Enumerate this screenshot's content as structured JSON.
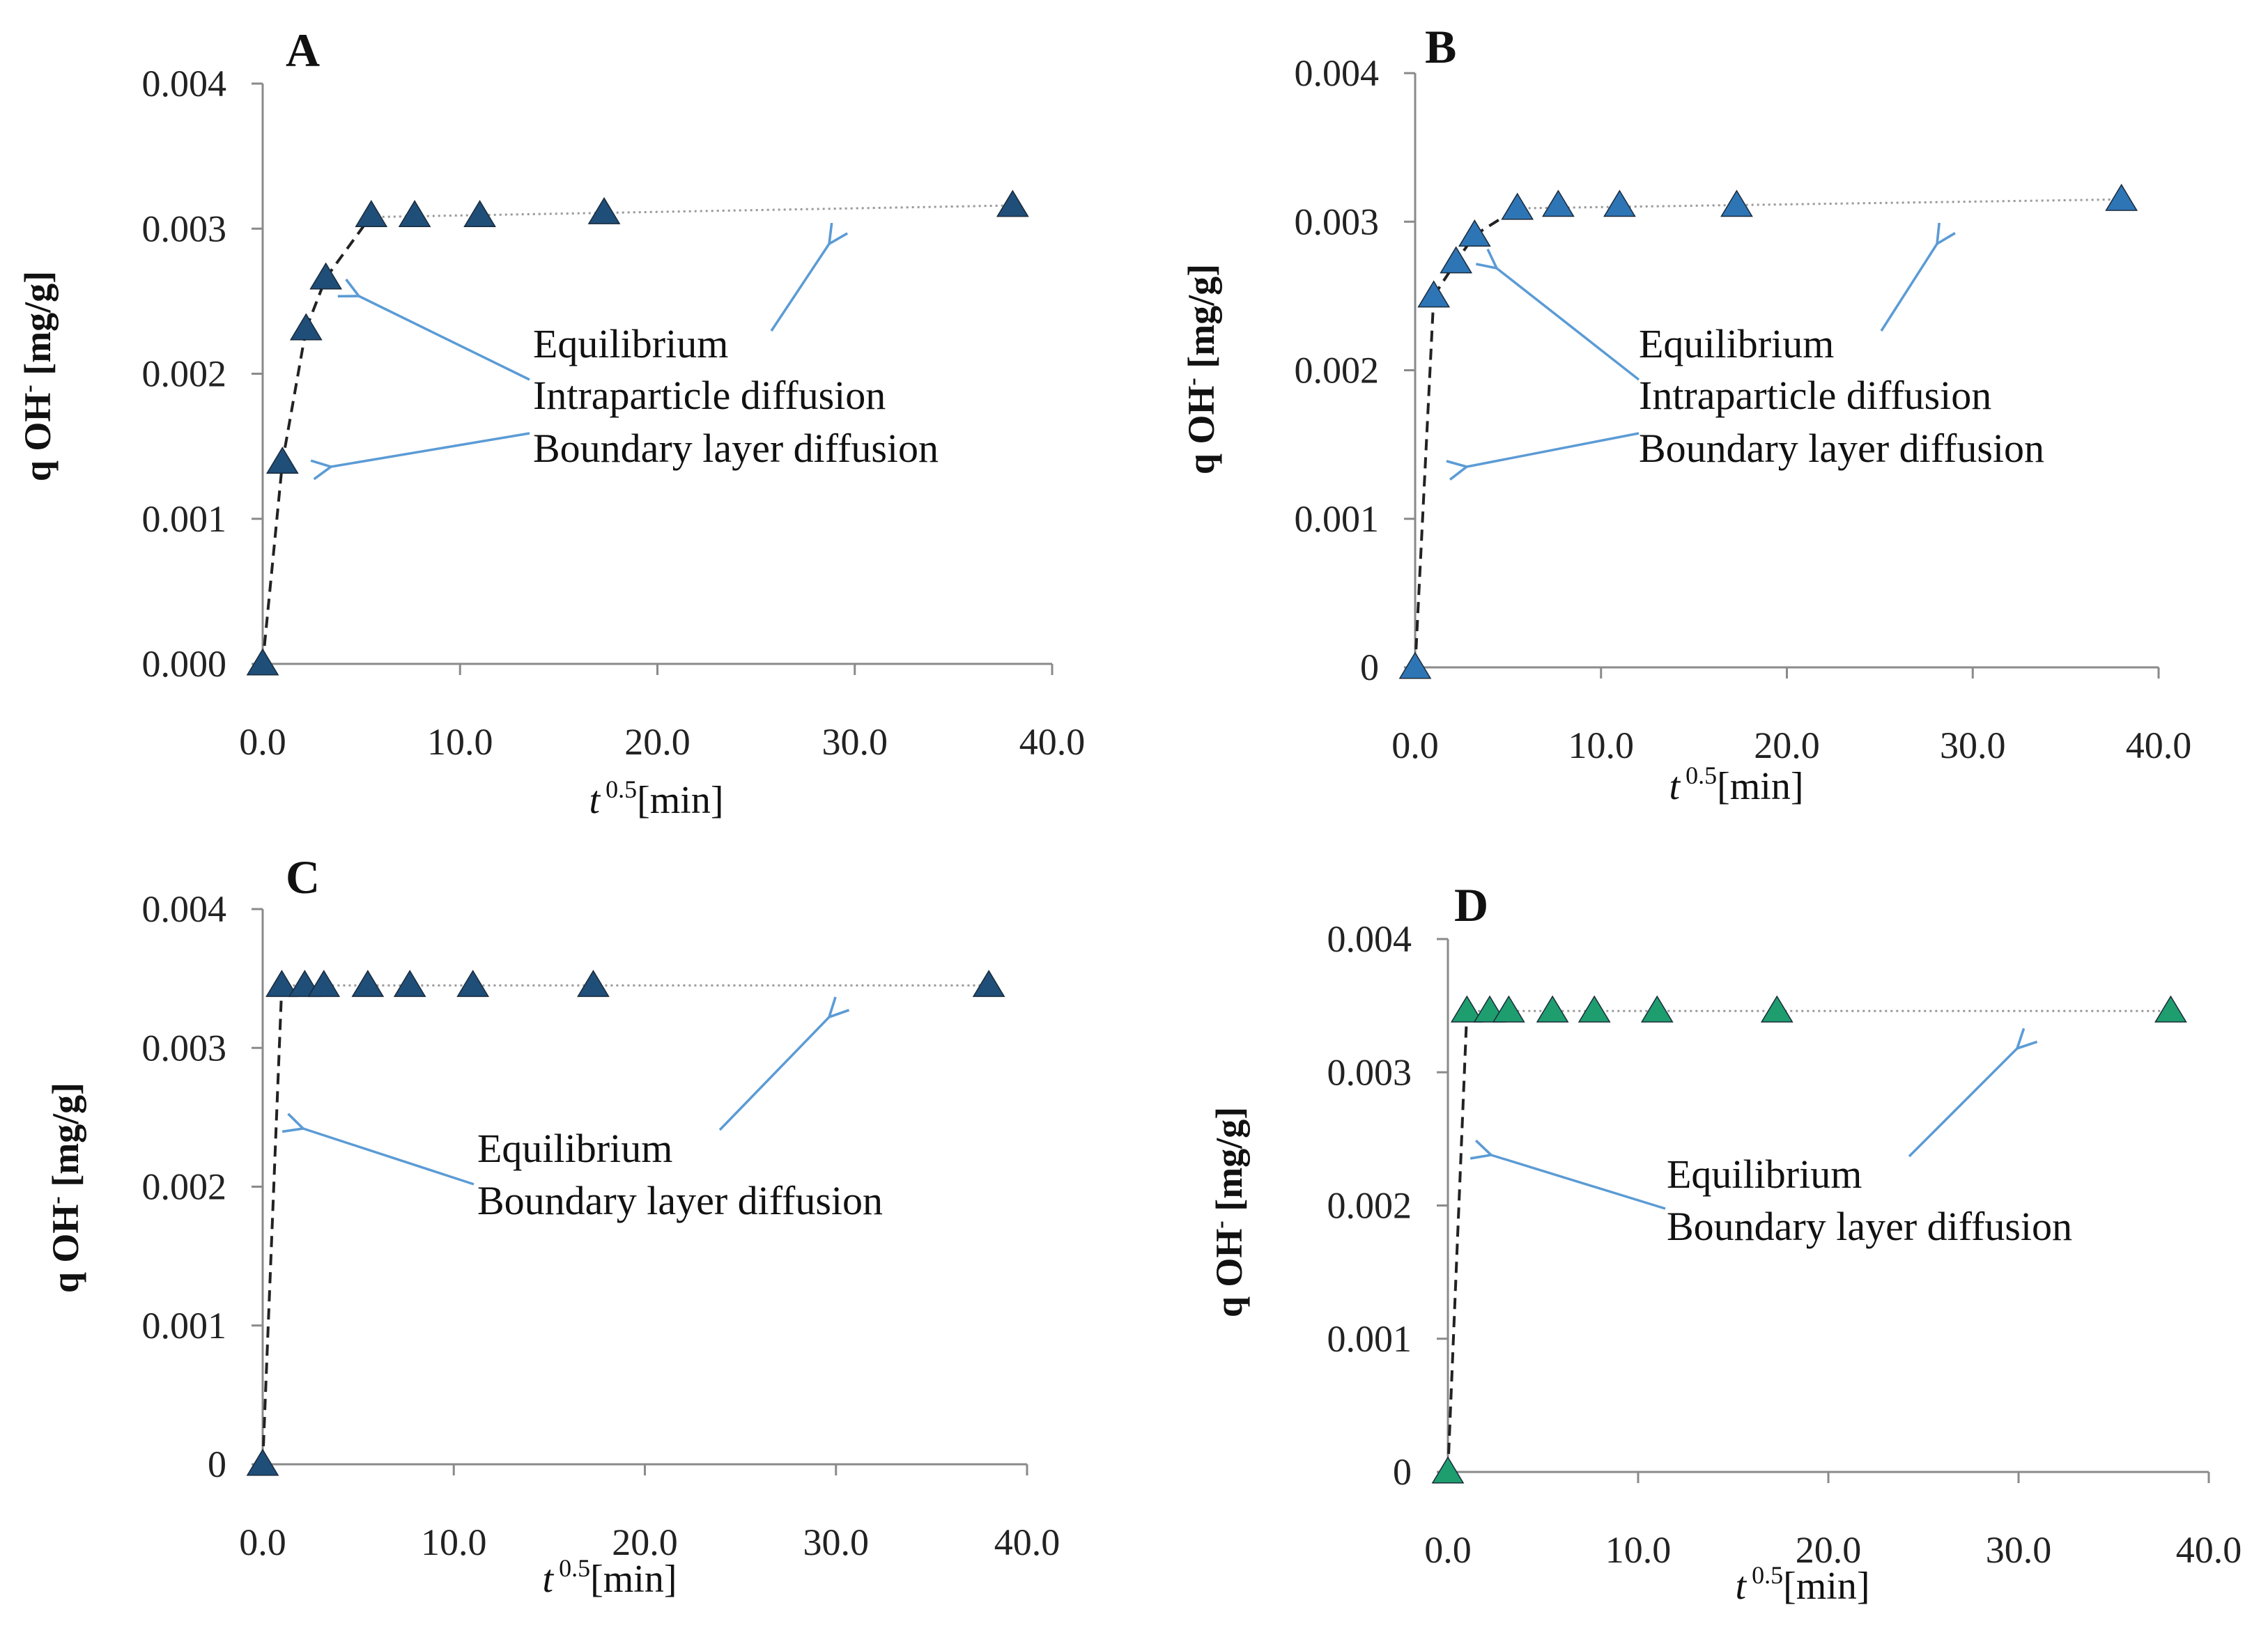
{
  "colors": {
    "axis": "#8a8a8a",
    "arrow": "#5b9bd5",
    "dashed_fit": "#222222",
    "dotted_fit": "#9a9a9a"
  },
  "chart_data": [
    {
      "panel": "A",
      "type": "scatter",
      "ylabel_main": "q OH",
      "ylabel_sup": "-",
      "ylabel_unit": " [mg/g]",
      "xlabel_main": "t",
      "xlabel_sup": "0.5",
      "xlabel_unit": "[min]",
      "xlim": [
        0,
        40
      ],
      "ylim": [
        0,
        0.004
      ],
      "xticks": [
        0,
        10,
        20,
        30,
        40
      ],
      "xtick_labels": [
        "0.0",
        "10.0",
        "20.0",
        "30.0",
        "40.0"
      ],
      "yticks": [
        0,
        0.001,
        0.002,
        0.003,
        0.004
      ],
      "ytick_labels": [
        "0.000",
        "0.001",
        "0.002",
        "0.003",
        "0.004"
      ],
      "marker_color": "#1f4e79",
      "x": [
        0,
        1.0,
        2.2,
        3.2,
        5.5,
        7.7,
        11.0,
        17.3,
        38.0
      ],
      "y": [
        0,
        0.00139,
        0.00231,
        0.00266,
        0.00309,
        0.00309,
        0.00309,
        0.00311,
        0.00316
      ],
      "boundary_fit_x": [
        0,
        1.0,
        2.2
      ],
      "boundary_fit_y": [
        0,
        0.00139,
        0.00231
      ],
      "intraparticle_fit_x": [
        2.2,
        3.2,
        5.5
      ],
      "intraparticle_fit_y": [
        0.00231,
        0.00266,
        0.00309
      ],
      "equilibrium_fit_x": [
        5.5,
        38.0
      ],
      "equilibrium_fit_y": [
        0.00308,
        0.00316
      ],
      "annotations": [
        "Equilibrium",
        "Intraparticle diffusion",
        "Boundary layer diffusion"
      ]
    },
    {
      "panel": "B",
      "type": "scatter",
      "ylabel_main": "q OH",
      "ylabel_sup": "-",
      "ylabel_unit": " [mg/g]",
      "xlabel_main": "t",
      "xlabel_sup": "0.5",
      "xlabel_unit": "[min]",
      "xlim": [
        0,
        40
      ],
      "ylim": [
        0,
        0.004
      ],
      "xticks": [
        0,
        10,
        20,
        30,
        40
      ],
      "xtick_labels": [
        "0.0",
        "10.0",
        "20.0",
        "30.0",
        "40.0"
      ],
      "yticks": [
        0,
        0.001,
        0.002,
        0.003,
        0.004
      ],
      "ytick_labels": [
        "0",
        "0.001",
        "0.002",
        "0.003",
        "0.004"
      ],
      "marker_color": "#2e75b6",
      "x": [
        0,
        1.0,
        2.2,
        3.2,
        5.5,
        7.7,
        11.0,
        17.3,
        38.0
      ],
      "y": [
        0,
        0.0025,
        0.00273,
        0.00291,
        0.00309,
        0.00311,
        0.00311,
        0.00311,
        0.00315
      ],
      "boundary_fit_x": [
        0,
        1.0
      ],
      "boundary_fit_y": [
        0,
        0.0025
      ],
      "intraparticle_fit_x": [
        1.0,
        2.2,
        3.2,
        5.5
      ],
      "intraparticle_fit_y": [
        0.0025,
        0.00273,
        0.00291,
        0.00309
      ],
      "equilibrium_fit_x": [
        5.5,
        38.0
      ],
      "equilibrium_fit_y": [
        0.00309,
        0.00315
      ],
      "annotations": [
        "Equilibrium",
        "Intraparticle diffusion",
        "Boundary layer diffusion"
      ]
    },
    {
      "panel": "C",
      "type": "scatter",
      "ylabel_main": "q OH",
      "ylabel_sup": "-",
      "ylabel_unit": " [mg/g]",
      "xlabel_main": "t",
      "xlabel_sup": "0.5",
      "xlabel_unit": "[min]",
      "xlim": [
        0,
        40
      ],
      "ylim": [
        0,
        0.004
      ],
      "xticks": [
        0,
        10,
        20,
        30,
        40
      ],
      "xtick_labels": [
        "0.0",
        "10.0",
        "20.0",
        "30.0",
        "40.0"
      ],
      "yticks": [
        0,
        0.001,
        0.002,
        0.003,
        0.004
      ],
      "ytick_labels": [
        "0",
        "0.001",
        "0.002",
        "0.003",
        "0.004"
      ],
      "marker_color": "#1f4e79",
      "x": [
        0,
        1.0,
        2.2,
        3.2,
        5.5,
        7.7,
        11.0,
        17.3,
        38.0
      ],
      "y": [
        0,
        0.00345,
        0.00345,
        0.00345,
        0.00345,
        0.00345,
        0.00345,
        0.00345,
        0.00345
      ],
      "boundary_fit_x": [
        0,
        1.0
      ],
      "boundary_fit_y": [
        0,
        0.00345
      ],
      "equilibrium_fit_x": [
        1.0,
        38.0
      ],
      "equilibrium_fit_y": [
        0.00345,
        0.00345
      ],
      "annotations": [
        "Equilibrium",
        "Boundary layer diffusion"
      ]
    },
    {
      "panel": "D",
      "type": "scatter",
      "ylabel_main": "q OH",
      "ylabel_sup": "-",
      "ylabel_unit": " [mg/g]",
      "xlabel_main": "t",
      "xlabel_sup": "0.5",
      "xlabel_unit": "[min]",
      "xlim": [
        0,
        40
      ],
      "ylim": [
        0,
        0.004
      ],
      "xticks": [
        0,
        10,
        20,
        30,
        40
      ],
      "xtick_labels": [
        "0.0",
        "10.0",
        "20.0",
        "30.0",
        "40.0"
      ],
      "yticks": [
        0,
        0.001,
        0.002,
        0.003,
        0.004
      ],
      "ytick_labels": [
        "0",
        "0.001",
        "0.002",
        "0.003",
        "0.004"
      ],
      "marker_color": "#1e9e6e",
      "x": [
        0,
        1.0,
        2.2,
        3.2,
        5.5,
        7.7,
        11.0,
        17.3,
        38.0
      ],
      "y": [
        0,
        0.00346,
        0.00346,
        0.00346,
        0.00346,
        0.00346,
        0.00346,
        0.00346,
        0.00346
      ],
      "boundary_fit_x": [
        0,
        1.0
      ],
      "boundary_fit_y": [
        0,
        0.00346
      ],
      "equilibrium_fit_x": [
        1.0,
        38.0
      ],
      "equilibrium_fit_y": [
        0.00346,
        0.00346
      ],
      "annotations": [
        "Equilibrium",
        "Boundary layer diffusion"
      ]
    }
  ]
}
